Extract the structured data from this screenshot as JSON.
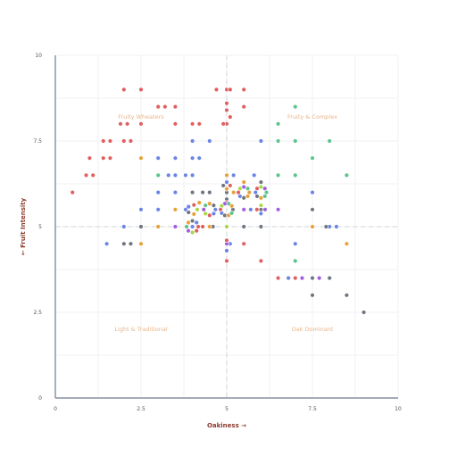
{
  "chart_data": {
    "type": "scatter",
    "title": "",
    "xlabel": "Oakiness →",
    "ylabel": "← Fruit Intensity",
    "xlim": [
      0,
      10
    ],
    "ylim": [
      0,
      10
    ],
    "x_ticks": [
      "0",
      "2.5",
      "5",
      "7.5",
      "10"
    ],
    "y_ticks": [
      "0",
      "2.5",
      "5",
      "7.5",
      "10"
    ],
    "reference_lines": {
      "x": 5,
      "y": 5
    },
    "quadrant_labels": [
      {
        "text": "Fruity Wheaters",
        "x": 2.5,
        "y": 8.2
      },
      {
        "text": "Fruity & Complex",
        "x": 7.5,
        "y": 8.2
      },
      {
        "text": "Light & Traditional",
        "x": 2.5,
        "y": 2.0
      },
      {
        "text": "Oak Dominant",
        "x": 7.5,
        "y": 2.0
      }
    ],
    "grid": true,
    "colors": {
      "red": "#e06060",
      "blue": "#6a85e6",
      "gray": "#6f7680",
      "orange": "#e8a13a",
      "green": "#5cc48c",
      "purple": "#a25ee0",
      "lime": "#a8d84a"
    },
    "points": [
      {
        "x": 2.0,
        "y": 9.0,
        "c": "red"
      },
      {
        "x": 2.5,
        "y": 9.0,
        "c": "red"
      },
      {
        "x": 3.0,
        "y": 8.5,
        "c": "red"
      },
      {
        "x": 3.2,
        "y": 8.5,
        "c": "red"
      },
      {
        "x": 3.5,
        "y": 8.5,
        "c": "red"
      },
      {
        "x": 4.7,
        "y": 9.0,
        "c": "red"
      },
      {
        "x": 5.0,
        "y": 9.0,
        "c": "red"
      },
      {
        "x": 5.1,
        "y": 9.0,
        "c": "red"
      },
      {
        "x": 5.5,
        "y": 9.0,
        "c": "red"
      },
      {
        "x": 5.5,
        "y": 8.5,
        "c": "red"
      },
      {
        "x": 5.0,
        "y": 8.6,
        "c": "red"
      },
      {
        "x": 5.0,
        "y": 8.4,
        "c": "red"
      },
      {
        "x": 5.1,
        "y": 8.2,
        "c": "red"
      },
      {
        "x": 5.0,
        "y": 8.0,
        "c": "red"
      },
      {
        "x": 4.9,
        "y": 8.0,
        "c": "red"
      },
      {
        "x": 1.9,
        "y": 8.0,
        "c": "red"
      },
      {
        "x": 2.1,
        "y": 8.0,
        "c": "red"
      },
      {
        "x": 2.5,
        "y": 8.0,
        "c": "red"
      },
      {
        "x": 3.5,
        "y": 8.0,
        "c": "red"
      },
      {
        "x": 4.0,
        "y": 8.0,
        "c": "red"
      },
      {
        "x": 4.2,
        "y": 8.0,
        "c": "red"
      },
      {
        "x": 1.4,
        "y": 7.5,
        "c": "red"
      },
      {
        "x": 1.6,
        "y": 7.5,
        "c": "red"
      },
      {
        "x": 2.0,
        "y": 7.5,
        "c": "red"
      },
      {
        "x": 2.2,
        "y": 7.5,
        "c": "red"
      },
      {
        "x": 1.0,
        "y": 7.0,
        "c": "red"
      },
      {
        "x": 1.4,
        "y": 7.0,
        "c": "red"
      },
      {
        "x": 1.6,
        "y": 7.0,
        "c": "red"
      },
      {
        "x": 0.9,
        "y": 6.5,
        "c": "red"
      },
      {
        "x": 1.1,
        "y": 6.5,
        "c": "red"
      },
      {
        "x": 0.5,
        "y": 6.0,
        "c": "red"
      },
      {
        "x": 7.0,
        "y": 8.5,
        "c": "green"
      },
      {
        "x": 6.5,
        "y": 8.0,
        "c": "green"
      },
      {
        "x": 6.5,
        "y": 7.5,
        "c": "green"
      },
      {
        "x": 7.0,
        "y": 7.5,
        "c": "green"
      },
      {
        "x": 8.0,
        "y": 7.5,
        "c": "green"
      },
      {
        "x": 7.5,
        "y": 7.0,
        "c": "green"
      },
      {
        "x": 8.5,
        "y": 6.5,
        "c": "green"
      },
      {
        "x": 7.0,
        "y": 6.5,
        "c": "green"
      },
      {
        "x": 6.5,
        "y": 6.5,
        "c": "green"
      },
      {
        "x": 7.0,
        "y": 4.0,
        "c": "green"
      },
      {
        "x": 3.0,
        "y": 6.5,
        "c": "green"
      },
      {
        "x": 4.0,
        "y": 7.5,
        "c": "blue"
      },
      {
        "x": 4.5,
        "y": 7.5,
        "c": "blue"
      },
      {
        "x": 6.0,
        "y": 7.5,
        "c": "blue"
      },
      {
        "x": 3.0,
        "y": 7.0,
        "c": "blue"
      },
      {
        "x": 3.5,
        "y": 7.0,
        "c": "blue"
      },
      {
        "x": 4.0,
        "y": 7.0,
        "c": "blue"
      },
      {
        "x": 4.2,
        "y": 7.0,
        "c": "blue"
      },
      {
        "x": 3.3,
        "y": 6.5,
        "c": "blue"
      },
      {
        "x": 3.5,
        "y": 6.5,
        "c": "blue"
      },
      {
        "x": 3.8,
        "y": 6.5,
        "c": "blue"
      },
      {
        "x": 4.0,
        "y": 6.5,
        "c": "blue"
      },
      {
        "x": 5.2,
        "y": 6.5,
        "c": "blue"
      },
      {
        "x": 5.8,
        "y": 6.5,
        "c": "blue"
      },
      {
        "x": 3.0,
        "y": 6.0,
        "c": "blue"
      },
      {
        "x": 3.5,
        "y": 6.0,
        "c": "blue"
      },
      {
        "x": 3.0,
        "y": 5.5,
        "c": "blue"
      },
      {
        "x": 2.5,
        "y": 5.5,
        "c": "blue"
      },
      {
        "x": 2.0,
        "y": 5.0,
        "c": "blue"
      },
      {
        "x": 1.5,
        "y": 4.5,
        "c": "blue"
      },
      {
        "x": 5.0,
        "y": 4.3,
        "c": "blue"
      },
      {
        "x": 5.1,
        "y": 4.5,
        "c": "blue"
      },
      {
        "x": 7.0,
        "y": 4.5,
        "c": "blue"
      },
      {
        "x": 8.0,
        "y": 5.0,
        "c": "blue"
      },
      {
        "x": 8.2,
        "y": 5.0,
        "c": "blue"
      },
      {
        "x": 7.5,
        "y": 6.0,
        "c": "blue"
      },
      {
        "x": 3.8,
        "y": 5.5,
        "c": "blue"
      },
      {
        "x": 4.0,
        "y": 5.0,
        "c": "blue"
      },
      {
        "x": 5.7,
        "y": 5.5,
        "c": "blue"
      },
      {
        "x": 5.2,
        "y": 6.0,
        "c": "blue"
      },
      {
        "x": 6.8,
        "y": 3.5,
        "c": "blue"
      },
      {
        "x": 2.0,
        "y": 4.5,
        "c": "gray"
      },
      {
        "x": 2.2,
        "y": 4.5,
        "c": "gray"
      },
      {
        "x": 2.5,
        "y": 5.0,
        "c": "gray"
      },
      {
        "x": 4.0,
        "y": 6.0,
        "c": "gray"
      },
      {
        "x": 4.3,
        "y": 6.0,
        "c": "gray"
      },
      {
        "x": 4.5,
        "y": 6.0,
        "c": "gray"
      },
      {
        "x": 5.0,
        "y": 6.0,
        "c": "gray"
      },
      {
        "x": 5.0,
        "y": 5.8,
        "c": "gray"
      },
      {
        "x": 6.0,
        "y": 6.3,
        "c": "gray"
      },
      {
        "x": 5.5,
        "y": 5.0,
        "c": "gray"
      },
      {
        "x": 6.0,
        "y": 5.5,
        "c": "gray"
      },
      {
        "x": 6.0,
        "y": 5.0,
        "c": "gray"
      },
      {
        "x": 7.5,
        "y": 5.5,
        "c": "gray"
      },
      {
        "x": 7.5,
        "y": 5.0,
        "c": "gray"
      },
      {
        "x": 7.9,
        "y": 5.0,
        "c": "gray"
      },
      {
        "x": 6.0,
        "y": 4.0,
        "c": "gray"
      },
      {
        "x": 6.5,
        "y": 3.5,
        "c": "gray"
      },
      {
        "x": 7.0,
        "y": 3.5,
        "c": "gray"
      },
      {
        "x": 7.5,
        "y": 3.5,
        "c": "gray"
      },
      {
        "x": 8.0,
        "y": 3.5,
        "c": "gray"
      },
      {
        "x": 7.5,
        "y": 3.0,
        "c": "gray"
      },
      {
        "x": 8.5,
        "y": 3.0,
        "c": "gray"
      },
      {
        "x": 9.0,
        "y": 2.5,
        "c": "gray"
      },
      {
        "x": 4.6,
        "y": 5.0,
        "c": "gray"
      },
      {
        "x": 2.5,
        "y": 7.0,
        "c": "orange"
      },
      {
        "x": 5.0,
        "y": 6.5,
        "c": "orange"
      },
      {
        "x": 5.5,
        "y": 6.3,
        "c": "orange"
      },
      {
        "x": 5.2,
        "y": 6.0,
        "c": "orange"
      },
      {
        "x": 3.5,
        "y": 5.5,
        "c": "orange"
      },
      {
        "x": 3.0,
        "y": 5.0,
        "c": "orange"
      },
      {
        "x": 4.5,
        "y": 5.0,
        "c": "orange"
      },
      {
        "x": 2.5,
        "y": 4.5,
        "c": "orange"
      },
      {
        "x": 7.5,
        "y": 5.0,
        "c": "orange"
      },
      {
        "x": 8.5,
        "y": 4.5,
        "c": "orange"
      },
      {
        "x": 4.2,
        "y": 5.7,
        "c": "orange"
      },
      {
        "x": 3.5,
        "y": 5.0,
        "c": "purple"
      },
      {
        "x": 5.0,
        "y": 5.0,
        "c": "purple"
      },
      {
        "x": 7.2,
        "y": 3.5,
        "c": "purple"
      },
      {
        "x": 7.7,
        "y": 3.5,
        "c": "purple"
      },
      {
        "x": 6.5,
        "y": 5.5,
        "c": "purple"
      },
      {
        "x": 5.0,
        "y": 4.5,
        "c": "purple"
      },
      {
        "x": 5.5,
        "y": 5.5,
        "c": "purple"
      },
      {
        "x": 5.0,
        "y": 5.0,
        "c": "lime"
      },
      {
        "x": 5.0,
        "y": 4.6,
        "c": "red"
      },
      {
        "x": 5.0,
        "y": 4.0,
        "c": "red"
      },
      {
        "x": 5.5,
        "y": 4.5,
        "c": "red"
      },
      {
        "x": 6.0,
        "y": 4.0,
        "c": "red"
      },
      {
        "x": 6.5,
        "y": 3.5,
        "c": "red"
      },
      {
        "x": 7.0,
        "y": 3.5,
        "c": "red"
      },
      {
        "x": 5.0,
        "y": 5.7,
        "c": "red"
      },
      {
        "x": 4.3,
        "y": 5.0,
        "c": "red"
      }
    ],
    "clusters": [
      {
        "x": 4.0,
        "y": 5.0,
        "n": 8,
        "r": 0.17
      },
      {
        "x": 4.5,
        "y": 5.5,
        "n": 8,
        "r": 0.17
      },
      {
        "x": 5.0,
        "y": 5.5,
        "n": 10,
        "r": 0.18
      },
      {
        "x": 5.5,
        "y": 6.0,
        "n": 8,
        "r": 0.16
      },
      {
        "x": 6.0,
        "y": 6.0,
        "n": 8,
        "r": 0.16
      },
      {
        "x": 6.0,
        "y": 5.5,
        "n": 4,
        "r": 0.12
      },
      {
        "x": 4.0,
        "y": 5.5,
        "n": 5,
        "r": 0.14
      },
      {
        "x": 5.0,
        "y": 6.2,
        "n": 4,
        "r": 0.1
      }
    ]
  }
}
